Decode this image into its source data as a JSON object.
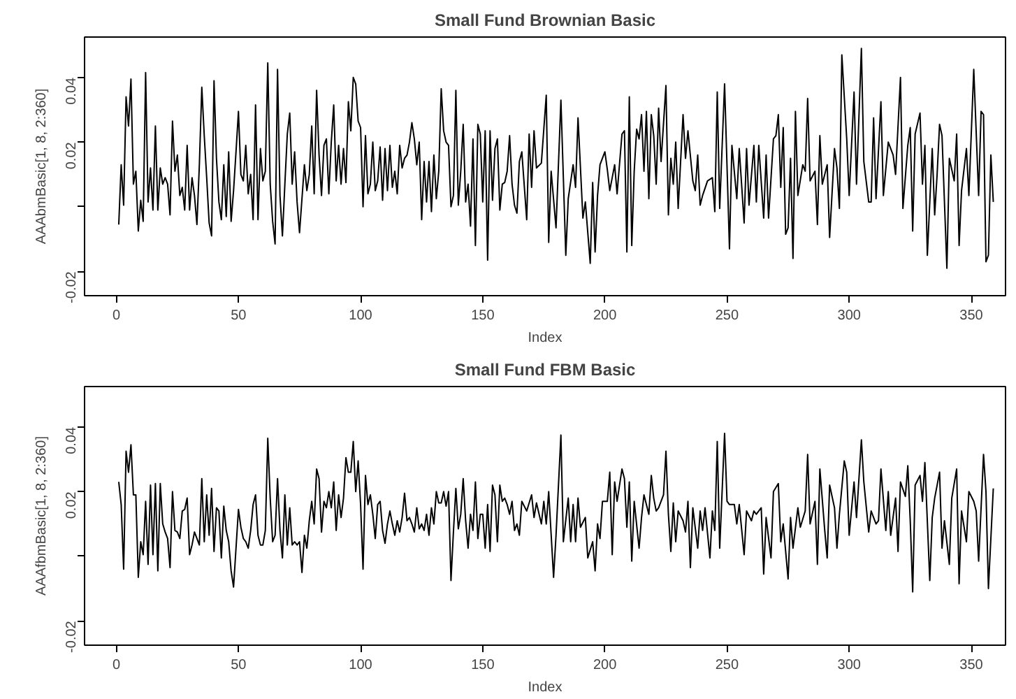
{
  "chart_data": [
    {
      "type": "line",
      "title": "Small Fund Brownian Basic",
      "xlabel": "Index",
      "ylabel": "AAAbmBasic[1, 8, 2:360]",
      "xlim": [
        -13,
        364
      ],
      "ylim": [
        -0.0275,
        0.0525
      ],
      "xticks": [
        0,
        50,
        100,
        150,
        200,
        250,
        300,
        350
      ],
      "yticks": [
        -0.02,
        {
          "value": 0,
          "label": null
        },
        0.02,
        0.04
      ],
      "x": [
        1,
        2,
        3,
        4,
        5,
        6,
        7,
        8,
        9,
        10,
        11,
        12,
        13,
        14,
        15,
        16,
        17,
        18,
        19,
        20,
        21,
        22,
        23,
        24,
        25,
        26,
        27,
        28,
        29,
        30,
        31,
        32,
        33,
        34,
        35,
        36,
        37,
        38,
        39,
        40,
        41,
        42,
        43,
        44,
        45,
        46,
        47,
        48,
        49,
        50,
        51,
        52,
        53,
        54,
        55,
        56,
        57,
        58,
        59,
        60,
        61,
        62,
        63,
        64,
        65,
        66,
        67,
        68,
        69,
        70,
        71,
        72,
        73,
        74,
        75,
        76,
        77,
        78,
        79,
        80,
        81,
        82,
        83,
        84,
        85,
        86,
        87,
        88,
        89,
        90,
        91,
        92,
        93,
        94,
        95,
        96,
        97,
        98,
        99,
        100,
        101,
        102,
        103,
        104,
        105,
        106,
        107,
        108,
        109,
        110,
        111,
        112,
        113,
        114,
        115,
        116,
        117,
        118,
        119,
        120,
        121,
        122,
        123,
        124,
        125,
        126,
        127,
        128,
        129,
        130,
        131,
        132,
        133,
        134,
        135,
        136,
        137,
        138,
        139,
        140,
        141,
        142,
        143,
        144,
        145,
        146,
        147,
        148,
        149,
        150,
        151,
        152,
        153,
        154,
        155,
        156,
        157,
        158,
        159,
        160,
        161,
        162,
        163,
        164,
        165,
        166,
        168,
        169,
        170,
        171,
        172,
        174,
        176,
        177,
        178,
        180,
        182,
        184,
        185,
        187,
        188,
        189,
        191,
        192,
        194,
        195,
        196,
        197,
        198,
        200,
        201,
        202,
        204,
        205,
        207,
        208,
        209,
        210,
        211,
        212,
        213,
        214,
        215,
        216,
        217,
        218,
        219,
        220,
        221,
        222,
        223,
        225,
        226,
        227,
        228,
        229,
        230,
        232,
        233,
        234,
        236,
        237,
        238,
        239,
        240,
        242,
        244,
        245,
        246,
        247,
        249,
        251,
        252,
        254,
        255,
        257,
        258,
        259,
        261,
        262,
        263,
        265,
        266,
        267,
        269,
        270,
        271,
        272,
        273,
        274,
        275,
        276,
        277,
        278,
        279,
        281,
        282,
        283,
        284,
        286,
        287,
        288,
        289,
        291,
        292,
        294,
        295,
        296,
        297,
        299,
        300,
        302,
        303,
        305,
        306,
        308,
        309,
        310,
        311,
        313,
        314,
        316,
        318,
        319,
        321,
        322,
        324,
        325,
        326,
        327,
        329,
        330,
        331,
        332,
        334,
        335,
        336,
        337,
        338,
        340,
        341,
        343,
        344,
        345,
        346,
        348,
        349,
        351,
        353,
        354,
        355,
        356,
        357,
        358,
        359
      ],
      "series": [
        {
          "color": "#000000",
          "values": [
            -0.0055,
            0.013,
            0.0005,
            0.034,
            0.025,
            0.0395,
            0.007,
            0.011,
            -0.0075,
            0.002,
            -0.0045,
            0.0415,
            0.0015,
            0.012,
            -0.001,
            0.025,
            -0.001,
            0.012,
            0.007,
            0.009,
            0.007,
            -0.0025,
            0.0265,
            0.011,
            0.016,
            0.0035,
            0.006,
            -0.001,
            0.019,
            -0.001,
            0.009,
            0.0035,
            -0.0055,
            0.013,
            0.037,
            0.022,
            0.009,
            -0.005,
            -0.009,
            0.039,
            0.015,
            0.0015,
            -0.004,
            0.013,
            -0.003,
            0.017,
            -0.0045,
            0.005,
            0.017,
            0.0295,
            0.01,
            0.008,
            0.019,
            0.004,
            0.01,
            -0.004,
            0.0315,
            -0.004,
            0.018,
            0.008,
            0.011,
            0.0445,
            0.007,
            -0.0045,
            -0.0115,
            0.0425,
            0.0035,
            -0.009,
            0.007,
            0.0225,
            0.029,
            0.007,
            0.017,
            0.0015,
            -0.008,
            0.0025,
            0.013,
            0.005,
            0.01,
            0.025,
            0.004,
            0.036,
            0.016,
            0.0035,
            0.019,
            0.021,
            0.004,
            0.02,
            0.0315,
            0.008,
            0.019,
            0.007,
            0.018,
            0.0075,
            0.0325,
            0.0235,
            0.04,
            0.038,
            0.0265,
            0.0245,
            0.0,
            0.022,
            0.004,
            0.007,
            0.02,
            0.005,
            0.008,
            0.0185,
            0.002,
            0.018,
            0.005,
            0.019,
            0.006,
            0.011,
            0.004,
            0.019,
            0.012,
            0.015,
            0.016,
            0.02,
            0.026,
            0.021,
            0.013,
            0.02,
            -0.004,
            0.014,
            0.0015,
            0.014,
            -0.0015,
            0.016,
            0.0025,
            0.011,
            0.0365,
            0.0235,
            0.02,
            0.019,
            0.0,
            0.0035,
            0.036,
            0.0005,
            0.011,
            0.0255,
            0.0015,
            0.007,
            -0.006,
            0.021,
            -0.012,
            0.0255,
            0.0225,
            0.0015,
            0.0235,
            -0.0165,
            0.0235,
            0.002,
            0.018,
            0.021,
            -0.001,
            0.007,
            0.0075,
            0.011,
            0.022,
            0.007,
            0.0005,
            -0.002,
            0.014,
            0.017,
            -0.004,
            0.0225,
            0.006,
            0.0235,
            0.012,
            0.0135,
            0.0345,
            -0.011,
            0.011,
            -0.0065,
            0.033,
            -0.015,
            0.0025,
            0.013,
            0.006,
            0.0275,
            -0.0035,
            0.0015,
            -0.0175,
            0.0075,
            -0.014,
            0.0035,
            0.013,
            0.017,
            0.0115,
            0.005,
            0.013,
            0.004,
            0.0225,
            0.0235,
            -0.014,
            0.034,
            -0.012,
            0.011,
            0.024,
            0.021,
            0.0285,
            0.011,
            0.0295,
            0.0025,
            0.0285,
            0.022,
            0.007,
            0.0305,
            0.014,
            0.0375,
            -0.0025,
            0.015,
            0.007,
            0.02,
            -0.0005,
            0.0285,
            0.015,
            0.0235,
            0.008,
            0.005,
            0.016,
            0.0005,
            0.0035,
            0.008,
            0.009,
            -0.0015,
            0.0355,
            -0.0005,
            0.038,
            -0.013,
            0.019,
            0.0025,
            0.018,
            -0.005,
            0.018,
            0.0005,
            0.019,
            0.0015,
            0.019,
            -0.0035,
            0.016,
            -0.0035,
            0.021,
            0.022,
            0.0285,
            0.006,
            0.0245,
            -0.0085,
            -0.0065,
            0.015,
            -0.016,
            0.0295,
            0.0035,
            0.013,
            0.011,
            0.0335,
            0.008,
            0.011,
            -0.0055,
            0.022,
            0.007,
            0.013,
            -0.0095,
            0.018,
            0.012,
            -0.0005,
            0.047,
            0.021,
            0.0035,
            0.0355,
            0.007,
            0.049,
            0.014,
            0.0015,
            0.0015,
            0.0275,
            0.0025,
            0.0325,
            0.0035,
            0.02,
            0.016,
            0.01,
            0.04,
            -0.0005,
            0.019,
            0.0245,
            -0.0075,
            0.0225,
            0.029,
            0.007,
            0.019,
            -0.015,
            0.018,
            -0.0025,
            0.01,
            0.0255,
            0.022,
            -0.019,
            0.015,
            0.008,
            0.0225,
            -0.012,
            0.005,
            0.018,
            0.0035,
            0.0425,
            0.0035,
            0.0295,
            0.0285,
            -0.017,
            -0.015,
            0.016,
            0.0015
          ]
        }
      ]
    },
    {
      "type": "line",
      "title": "Small Fund FBM Basic",
      "xlabel": "Index",
      "ylabel": "AAAfbmBasic[1, 8, 2:360]",
      "xlim": [
        -13,
        364
      ],
      "ylim": [
        -0.0275,
        0.0525
      ],
      "xticks": [
        0,
        50,
        100,
        150,
        200,
        250,
        300,
        350
      ],
      "yticks": [
        -0.02,
        {
          "value": 0,
          "label": null
        },
        0.02,
        0.04
      ],
      "x": [
        1,
        2,
        3,
        4,
        5,
        6,
        7,
        8,
        9,
        10,
        11,
        12,
        13,
        14,
        15,
        16,
        17,
        18,
        19,
        20,
        21,
        22,
        23,
        24,
        25,
        26,
        27,
        28,
        29,
        30,
        31,
        32,
        33,
        34,
        35,
        36,
        37,
        38,
        39,
        40,
        41,
        42,
        43,
        44,
        45,
        46,
        47,
        48,
        49,
        50,
        51,
        52,
        53,
        54,
        55,
        56,
        57,
        58,
        59,
        60,
        61,
        62,
        63,
        64,
        65,
        66,
        67,
        68,
        69,
        70,
        71,
        72,
        73,
        74,
        75,
        76,
        77,
        78,
        79,
        80,
        81,
        82,
        83,
        84,
        85,
        86,
        87,
        88,
        89,
        90,
        91,
        92,
        93,
        94,
        95,
        96,
        97,
        98,
        99,
        100,
        101,
        102,
        103,
        104,
        105,
        106,
        107,
        108,
        109,
        110,
        111,
        112,
        113,
        114,
        115,
        116,
        117,
        118,
        119,
        120,
        121,
        122,
        123,
        124,
        125,
        126,
        127,
        128,
        129,
        130,
        131,
        132,
        133,
        134,
        135,
        136,
        137,
        138,
        139,
        140,
        141,
        142,
        143,
        144,
        145,
        146,
        147,
        148,
        149,
        150,
        151,
        152,
        153,
        154,
        155,
        156,
        157,
        158,
        159,
        160,
        161,
        162,
        163,
        164,
        165,
        166,
        168,
        170,
        171,
        172,
        174,
        175,
        176,
        177,
        179,
        180,
        182,
        183,
        185,
        186,
        187,
        188,
        189,
        190,
        192,
        193,
        195,
        196,
        197,
        198,
        199,
        201,
        202,
        203,
        204,
        205,
        207,
        208,
        209,
        210,
        211,
        212,
        214,
        215,
        216,
        218,
        219,
        220,
        221,
        222,
        224,
        225,
        226,
        227,
        228,
        229,
        230,
        232,
        233,
        234,
        235,
        236,
        238,
        239,
        240,
        241,
        243,
        244,
        245,
        246,
        247,
        249,
        250,
        251,
        253,
        254,
        255,
        257,
        258,
        260,
        261,
        262,
        264,
        265,
        266,
        268,
        269,
        271,
        272,
        273,
        275,
        276,
        277,
        279,
        280,
        282,
        283,
        284,
        286,
        287,
        288,
        290,
        291,
        292,
        294,
        295,
        296,
        298,
        299,
        300,
        302,
        303,
        305,
        306,
        308,
        309,
        311,
        312,
        313,
        315,
        316,
        317,
        319,
        320,
        321,
        323,
        324,
        325,
        326,
        327,
        329,
        330,
        331,
        333,
        334,
        335,
        337,
        338,
        339,
        341,
        342,
        344,
        345,
        346,
        348,
        349,
        351,
        352,
        353,
        355,
        356,
        357,
        359
      ],
      "series": [
        {
          "color": "#000000",
          "values": [
            0.023,
            0.016,
            -0.004,
            0.0325,
            0.026,
            0.0345,
            0.019,
            0.019,
            -0.0065,
            0.0045,
            0.0005,
            0.017,
            -0.0025,
            0.022,
            0.0005,
            0.0225,
            -0.0045,
            0.0225,
            0.01,
            0.0075,
            0.0055,
            -0.0035,
            0.02,
            0.008,
            0.0075,
            0.0055,
            0.014,
            0.0145,
            0.018,
            0.0005,
            0.0035,
            0.0075,
            0.0055,
            0.0035,
            0.024,
            0.0045,
            0.019,
            0.0065,
            0.021,
            0.0015,
            0.015,
            0.014,
            -0.0005,
            0.0155,
            0.008,
            0.0045,
            -0.0045,
            -0.0095,
            0.0025,
            0.0145,
            0.009,
            0.0055,
            0.0045,
            0.0025,
            0.008,
            0.016,
            0.019,
            0.0065,
            0.0035,
            0.0035,
            0.008,
            0.0365,
            0.018,
            0.0045,
            0.0065,
            0.024,
            0.008,
            -0.0005,
            0.019,
            0.0035,
            0.015,
            0.0035,
            0.0045,
            0.0035,
            0.0045,
            -0.005,
            0.0065,
            0.0025,
            0.011,
            0.017,
            0.01,
            0.027,
            0.024,
            0.0075,
            0.017,
            0.015,
            0.02,
            0.015,
            0.023,
            0.008,
            0.019,
            0.012,
            0.018,
            0.0305,
            0.026,
            0.026,
            0.0355,
            0.02,
            0.0295,
            0.016,
            -0.004,
            0.025,
            0.016,
            0.019,
            0.013,
            0.0055,
            0.016,
            0.017,
            0.008,
            0.004,
            0.01,
            0.014,
            0.01,
            0.0065,
            0.011,
            0.0075,
            0.012,
            0.0195,
            0.011,
            0.012,
            0.01,
            0.0075,
            0.015,
            0.0085,
            0.01,
            0.008,
            0.013,
            0.0065,
            0.015,
            0.01,
            0.02,
            0.0165,
            0.0165,
            0.02,
            0.0155,
            0.02,
            -0.0075,
            0.0075,
            0.021,
            0.0085,
            0.013,
            0.024,
            0.011,
            0.0025,
            0.013,
            0.008,
            0.023,
            0.0055,
            0.013,
            0.013,
            0.0025,
            0.016,
            0.0015,
            0.022,
            0.019,
            0.0045,
            0.022,
            0.017,
            0.018,
            0.016,
            0.013,
            0.017,
            0.008,
            0.01,
            0.0065,
            0.017,
            0.014,
            0.019,
            0.012,
            0.0165,
            0.01,
            0.017,
            0.01,
            0.02,
            -0.0065,
            0.0065,
            0.0375,
            0.0045,
            0.018,
            0.0045,
            0.016,
            0.0045,
            0.018,
            0.009,
            0.012,
            -0.0005,
            0.0045,
            -0.0045,
            0.01,
            0.0055,
            0.017,
            0.017,
            0.026,
            0.0005,
            0.023,
            0.017,
            0.027,
            0.024,
            0.009,
            0.023,
            -0.0015,
            0.017,
            0.0025,
            0.012,
            0.019,
            0.013,
            0.025,
            0.018,
            0.014,
            0.015,
            0.019,
            0.0325,
            0.013,
            0.0015,
            0.0165,
            0.0045,
            0.014,
            0.011,
            0.0075,
            0.017,
            -0.0035,
            0.015,
            0.0025,
            0.014,
            0.008,
            0.015,
            -0.0005,
            0.014,
            0.008,
            0.0355,
            0.0025,
            0.038,
            0.017,
            0.016,
            0.016,
            0.01,
            0.016,
            0.0005,
            0.014,
            0.011,
            0.014,
            0.013,
            0.015,
            -0.0055,
            0.012,
            -0.0005,
            0.02,
            0.0225,
            0.0045,
            0.01,
            -0.007,
            0.012,
            0.0025,
            0.015,
            0.009,
            0.014,
            0.0315,
            0.01,
            0.017,
            -0.0025,
            0.027,
            0.008,
            -0.0005,
            0.022,
            0.015,
            0.0025,
            0.013,
            0.0295,
            0.026,
            0.0065,
            0.023,
            0.012,
            0.036,
            0.023,
            0.0075,
            0.014,
            0.01,
            0.011,
            0.027,
            0.008,
            0.02,
            0.0065,
            0.018,
            0.0015,
            0.023,
            0.0185,
            0.028,
            0.011,
            -0.011,
            0.022,
            0.025,
            0.017,
            0.029,
            -0.0075,
            0.012,
            0.018,
            0.026,
            0.0025,
            0.011,
            -0.0025,
            0.018,
            0.027,
            -0.0085,
            0.014,
            0.0045,
            0.02,
            0.017,
            0.014,
            -0.0015,
            0.0315,
            0.02,
            -0.01,
            0.021
          ]
        }
      ]
    }
  ]
}
